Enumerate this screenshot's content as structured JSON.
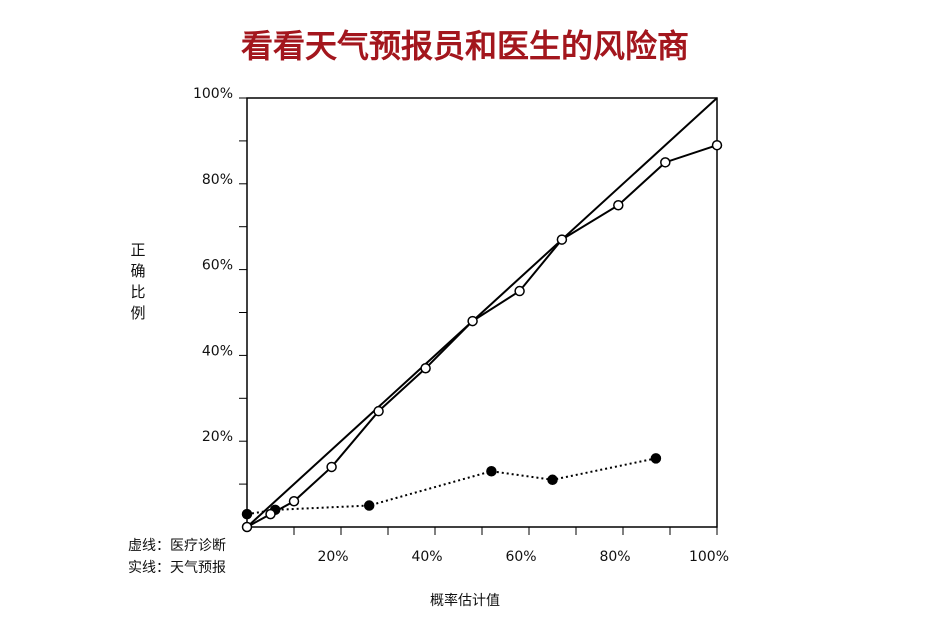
{
  "chart_data": {
    "type": "line",
    "title": "看看天气预报员和医生的风险商",
    "x_label": "概率估计值",
    "y_label": "正确比例",
    "xlim": [
      0,
      100
    ],
    "ylim": [
      0,
      100
    ],
    "xticks": [
      {
        "value": 20,
        "label": "20%"
      },
      {
        "value": 40,
        "label": "40%"
      },
      {
        "value": 60,
        "label": "60%"
      },
      {
        "value": 80,
        "label": "80%"
      },
      {
        "value": 100,
        "label": "100%"
      }
    ],
    "yticks": [
      {
        "value": 20,
        "label": "20%"
      },
      {
        "value": 40,
        "label": "40%"
      },
      {
        "value": 60,
        "label": "60%"
      },
      {
        "value": 80,
        "label": "80%"
      },
      {
        "value": 100,
        "label": "100%"
      }
    ],
    "minor_xticks": [
      10,
      30,
      50,
      70,
      90
    ],
    "minor_yticks": [
      10,
      30,
      50,
      70,
      90
    ],
    "diagonal": true,
    "series": [
      {
        "name": "虚线：医疗诊断",
        "color": "#000000",
        "style": "dotted",
        "marker": "filled",
        "x": [
          0,
          6,
          26,
          52,
          65,
          87
        ],
        "values": [
          3,
          4,
          5,
          13,
          11,
          16
        ]
      },
      {
        "name": "实线：天气预报",
        "color": "#000000",
        "style": "solid",
        "marker": "open",
        "x": [
          0,
          5,
          10,
          18,
          28,
          38,
          48,
          58,
          67,
          79,
          89,
          100
        ],
        "values": [
          0,
          3,
          6,
          14,
          27,
          37,
          48,
          55,
          67,
          75,
          85,
          89
        ]
      }
    ]
  }
}
